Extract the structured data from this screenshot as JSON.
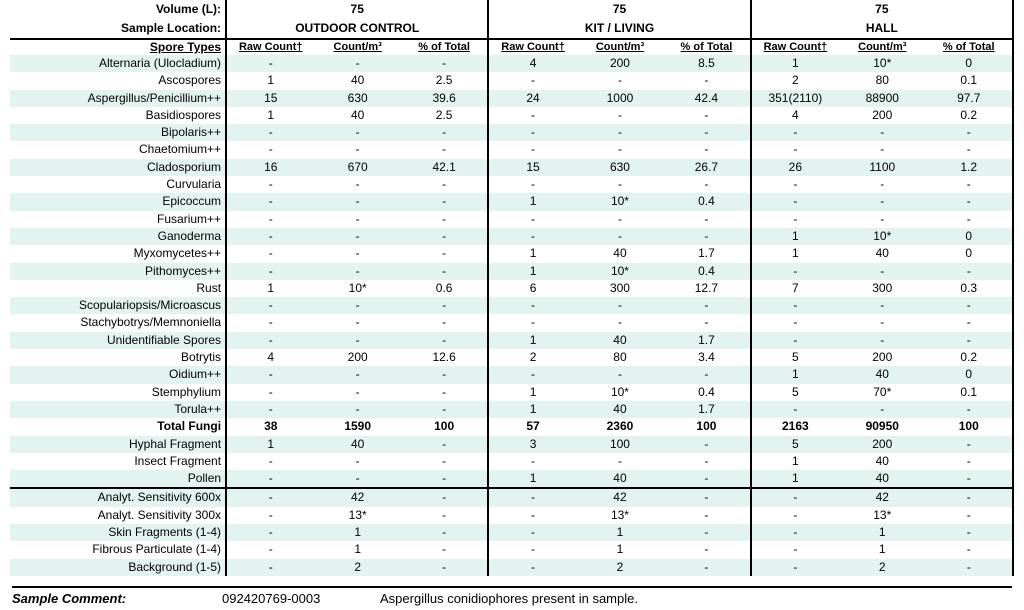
{
  "header": {
    "volume_label": "Volume (L):",
    "location_label": "Sample Location:",
    "samples": [
      {
        "volume": "75",
        "location": "OUTDOOR CONTROL"
      },
      {
        "volume": "75",
        "location": "KIT / LIVING"
      },
      {
        "volume": "75",
        "location": "HALL"
      }
    ]
  },
  "columns": {
    "label": "Spore Types",
    "raw": "Raw Count†",
    "count": "Count/m³",
    "pct": "% of Total"
  },
  "rows": [
    {
      "label": "Alternaria (Ulocladium)",
      "bold": false,
      "values": [
        "-",
        "-",
        "-",
        "4",
        "200",
        "8.5",
        "1",
        "10*",
        "0"
      ]
    },
    {
      "label": "Ascospores",
      "bold": false,
      "values": [
        "1",
        "40",
        "2.5",
        "-",
        "-",
        "-",
        "2",
        "80",
        "0.1"
      ]
    },
    {
      "label": "Aspergillus/Penicillium++",
      "bold": false,
      "values": [
        "15",
        "630",
        "39.6",
        "24",
        "1000",
        "42.4",
        "351(2110)",
        "88900",
        "97.7"
      ]
    },
    {
      "label": "Basidiospores",
      "bold": false,
      "values": [
        "1",
        "40",
        "2.5",
        "-",
        "-",
        "-",
        "4",
        "200",
        "0.2"
      ]
    },
    {
      "label": "Bipolaris++",
      "bold": false,
      "values": [
        "-",
        "-",
        "-",
        "-",
        "-",
        "-",
        "-",
        "-",
        "-"
      ]
    },
    {
      "label": "Chaetomium++",
      "bold": false,
      "values": [
        "-",
        "-",
        "-",
        "-",
        "-",
        "-",
        "-",
        "-",
        "-"
      ]
    },
    {
      "label": "Cladosporium",
      "bold": false,
      "values": [
        "16",
        "670",
        "42.1",
        "15",
        "630",
        "26.7",
        "26",
        "1100",
        "1.2"
      ]
    },
    {
      "label": "Curvularia",
      "bold": false,
      "values": [
        "-",
        "-",
        "-",
        "-",
        "-",
        "-",
        "-",
        "-",
        "-"
      ]
    },
    {
      "label": "Epicoccum",
      "bold": false,
      "values": [
        "-",
        "-",
        "-",
        "1",
        "10*",
        "0.4",
        "-",
        "-",
        "-"
      ]
    },
    {
      "label": "Fusarium++",
      "bold": false,
      "values": [
        "-",
        "-",
        "-",
        "-",
        "-",
        "-",
        "-",
        "-",
        "-"
      ]
    },
    {
      "label": "Ganoderma",
      "bold": false,
      "values": [
        "-",
        "-",
        "-",
        "-",
        "-",
        "-",
        "1",
        "10*",
        "0"
      ]
    },
    {
      "label": "Myxomycetes++",
      "bold": false,
      "values": [
        "-",
        "-",
        "-",
        "1",
        "40",
        "1.7",
        "1",
        "40",
        "0"
      ]
    },
    {
      "label": "Pithomyces++",
      "bold": false,
      "values": [
        "-",
        "-",
        "-",
        "1",
        "10*",
        "0.4",
        "-",
        "-",
        "-"
      ]
    },
    {
      "label": "Rust",
      "bold": false,
      "values": [
        "1",
        "10*",
        "0.6",
        "6",
        "300",
        "12.7",
        "7",
        "300",
        "0.3"
      ]
    },
    {
      "label": "Scopulariopsis/Microascus",
      "bold": false,
      "values": [
        "-",
        "-",
        "-",
        "-",
        "-",
        "-",
        "-",
        "-",
        "-"
      ]
    },
    {
      "label": "Stachybotrys/Memnoniella",
      "bold": false,
      "values": [
        "-",
        "-",
        "-",
        "-",
        "-",
        "-",
        "-",
        "-",
        "-"
      ]
    },
    {
      "label": "Unidentifiable Spores",
      "bold": false,
      "values": [
        "-",
        "-",
        "-",
        "1",
        "40",
        "1.7",
        "-",
        "-",
        "-"
      ]
    },
    {
      "label": "Botrytis",
      "bold": false,
      "values": [
        "4",
        "200",
        "12.6",
        "2",
        "80",
        "3.4",
        "5",
        "200",
        "0.2"
      ]
    },
    {
      "label": "Oidium++",
      "bold": false,
      "values": [
        "-",
        "-",
        "-",
        "-",
        "-",
        "-",
        "1",
        "40",
        "0"
      ]
    },
    {
      "label": "Stemphylium",
      "bold": false,
      "values": [
        "-",
        "-",
        "-",
        "1",
        "10*",
        "0.4",
        "5",
        "70*",
        "0.1"
      ]
    },
    {
      "label": "Torula++",
      "bold": false,
      "values": [
        "-",
        "-",
        "-",
        "1",
        "40",
        "1.7",
        "-",
        "-",
        "-"
      ]
    },
    {
      "label": "Total Fungi",
      "bold": true,
      "values": [
        "38",
        "1590",
        "100",
        "57",
        "2360",
        "100",
        "2163",
        "90950",
        "100"
      ]
    },
    {
      "label": "Hyphal Fragment",
      "bold": false,
      "values": [
        "1",
        "40",
        "-",
        "3",
        "100",
        "-",
        "5",
        "200",
        "-"
      ]
    },
    {
      "label": "Insect Fragment",
      "bold": false,
      "values": [
        "-",
        "-",
        "-",
        "-",
        "-",
        "-",
        "1",
        "40",
        "-"
      ]
    },
    {
      "label": "Pollen",
      "bold": false,
      "values": [
        "-",
        "-",
        "-",
        "1",
        "40",
        "-",
        "1",
        "40",
        "-"
      ]
    }
  ],
  "footer_rows": [
    {
      "label": "Analyt. Sensitivity 600x",
      "values": [
        "-",
        "42",
        "-",
        "-",
        "42",
        "-",
        "-",
        "42",
        "-"
      ]
    },
    {
      "label": "Analyt. Sensitivity 300x",
      "values": [
        "-",
        "13*",
        "-",
        "-",
        "13*",
        "-",
        "-",
        "13*",
        "-"
      ]
    },
    {
      "label": "Skin Fragments (1-4)",
      "values": [
        "-",
        "1",
        "-",
        "-",
        "1",
        "-",
        "-",
        "1",
        "-"
      ]
    },
    {
      "label": "Fibrous Particulate (1-4)",
      "values": [
        "-",
        "1",
        "-",
        "-",
        "1",
        "-",
        "-",
        "1",
        "-"
      ]
    },
    {
      "label": "Background (1-5)",
      "values": [
        "-",
        "2",
        "-",
        "-",
        "2",
        "-",
        "-",
        "2",
        "-"
      ]
    }
  ],
  "comment": {
    "label": "Sample Comment:",
    "sample_id": "092420769-0003",
    "text": "Aspergillus conidiophores present in sample."
  },
  "colors": {
    "row_tint": "#e3f3f0"
  }
}
